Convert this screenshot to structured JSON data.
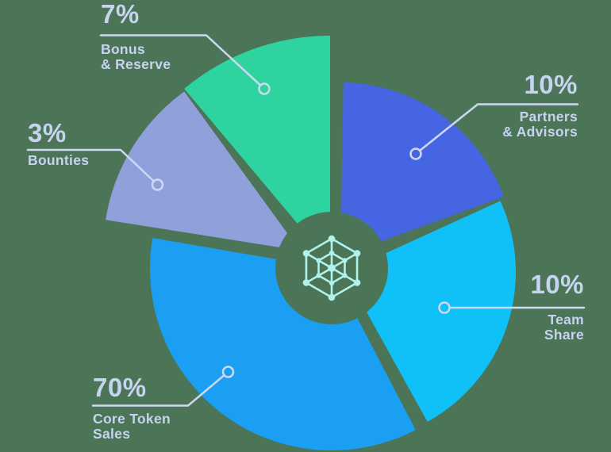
{
  "chart_data": {
    "type": "pie",
    "style": "exploded-donut-infographic",
    "background": "#4c7456",
    "line_color": "#cdd9f3",
    "label_color": "#c7d4f1",
    "icon_color": "#b0f2ec",
    "center_icon": "blockchain-network-icon",
    "legend_position": "callout-labels",
    "layout": {
      "hub": {
        "center": [
          418,
          338
        ],
        "r": 71
      },
      "icon": {
        "center": [
          418,
          338
        ],
        "outer_r": 37,
        "inner_r": 19
      }
    },
    "slices": [
      {
        "id": "core-token-sales",
        "name_lines": [
          "Core Token",
          "Sales"
        ],
        "pct": "70%",
        "value": 70,
        "color": "#1a9ff2",
        "layout": {
          "center": [
            418,
            339
          ],
          "r": 229,
          "start": 152.5,
          "end": 279.8
        },
        "leader": {
          "points": [
            [
              117,
              511.5
            ],
            [
              237,
              511.5
            ],
            [
              282.5,
              473.2
            ]
          ],
          "dot": [
            287.5,
            469
          ]
        }
      },
      {
        "id": "team-share",
        "name_lines": [
          "Team",
          "Share"
        ],
        "pct": "10%",
        "value": 10,
        "color": "#0fc1f7",
        "layout": {
          "center": [
            434,
            343
          ],
          "r": 216,
          "start": 65.5,
          "end": 151
        },
        "leader": {
          "points": [
            [
              566.5,
              388
            ],
            [
              736,
              388
            ]
          ],
          "dot": [
            560,
            388
          ]
        }
      },
      {
        "id": "partners-advisors",
        "name_lines": [
          "Partners",
          "& Advisors"
        ],
        "pct": "10%",
        "value": 10,
        "color": "#4565e2",
        "layout": {
          "center": [
            429,
            323
          ],
          "r": 219,
          "start": 1,
          "end": 70
        },
        "leader": {
          "points": [
            [
              529.1,
              189.9
            ],
            [
              602,
              131.5
            ],
            [
              728,
              131.5
            ]
          ],
          "dot": [
            524,
            194
          ]
        }
      },
      {
        "id": "bonus-reserve",
        "name_lines": [
          "Bonus",
          "& Reserve"
        ],
        "pct": "7%",
        "value": 7,
        "color": "#2fd3a0",
        "layout": {
          "center": [
            416,
            331
          ],
          "r": 286,
          "start": 320,
          "end": 360
        },
        "leader": {
          "points": [
            [
              127,
              44.5
            ],
            [
              260,
              44.5
            ],
            [
              328.2,
              107.6
            ]
          ],
          "dot": [
            333,
            112
          ]
        }
      },
      {
        "id": "bounties",
        "name_lines": [
          "Bounties"
        ],
        "pct": "3%",
        "value": 3,
        "color": "#8fa0db",
        "layout": {
          "center": [
            378,
            316
          ],
          "r": 248,
          "start": 279,
          "end": 324
        },
        "leader": {
          "points": [
            [
              35,
              189
            ],
            [
              152,
              189
            ],
            [
              193.8,
              228.5
            ]
          ],
          "dot": [
            198.5,
            233
          ]
        }
      }
    ]
  }
}
